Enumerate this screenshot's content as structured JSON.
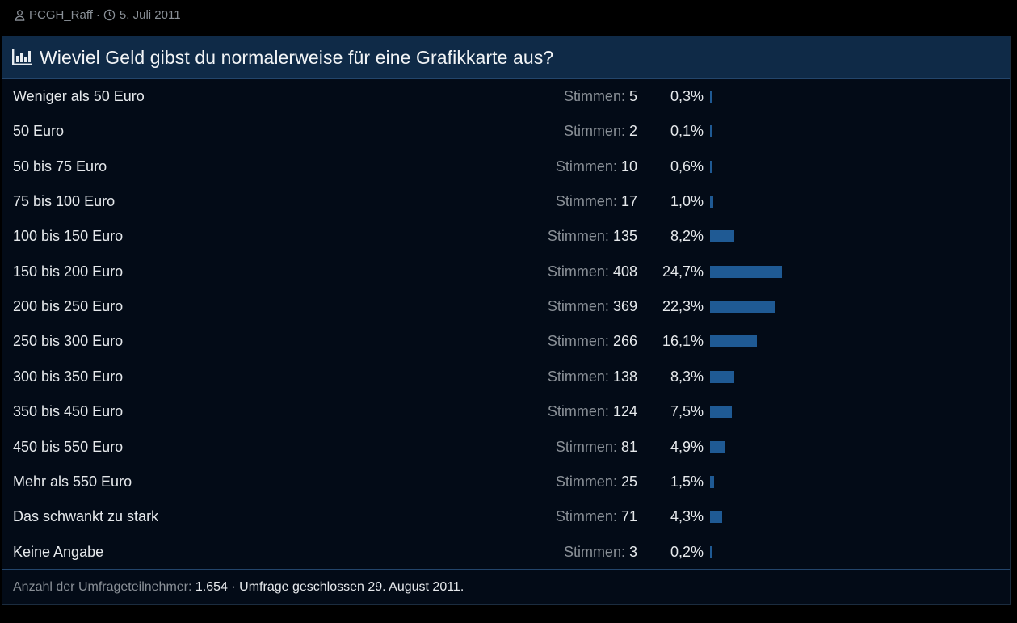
{
  "thread_meta": {
    "author": "PCGH_Raff",
    "separator": "·",
    "date": "5. Juli 2011",
    "icons": [
      "user-icon",
      "clock-icon"
    ]
  },
  "poll": {
    "title": "Wieviel Geld gibst du normalerweise für eine Grafikkarte aus?",
    "title_icon": "bar-chart-icon",
    "votes_label": "Stimmen:",
    "bar_color": "#1f5a94",
    "answers": [
      {
        "label": "Weniger als 50 Euro",
        "votes": "5",
        "percent": "0,3%",
        "fraction": 0.003
      },
      {
        "label": "50 Euro",
        "votes": "2",
        "percent": "0,1%",
        "fraction": 0.001
      },
      {
        "label": "50 bis 75 Euro",
        "votes": "10",
        "percent": "0,6%",
        "fraction": 0.006
      },
      {
        "label": "75 bis 100 Euro",
        "votes": "17",
        "percent": "1,0%",
        "fraction": 0.01
      },
      {
        "label": "100 bis 150 Euro",
        "votes": "135",
        "percent": "8,2%",
        "fraction": 0.082
      },
      {
        "label": "150 bis 200 Euro",
        "votes": "408",
        "percent": "24,7%",
        "fraction": 0.247
      },
      {
        "label": "200 bis 250 Euro",
        "votes": "369",
        "percent": "22,3%",
        "fraction": 0.223
      },
      {
        "label": "250 bis 300 Euro",
        "votes": "266",
        "percent": "16,1%",
        "fraction": 0.161
      },
      {
        "label": "300 bis 350 Euro",
        "votes": "138",
        "percent": "8,3%",
        "fraction": 0.083
      },
      {
        "label": "350 bis 450 Euro",
        "votes": "124",
        "percent": "7,5%",
        "fraction": 0.075
      },
      {
        "label": "450 bis 550 Euro",
        "votes": "81",
        "percent": "4,9%",
        "fraction": 0.049
      },
      {
        "label": "Mehr als 550 Euro",
        "votes": "25",
        "percent": "1,5%",
        "fraction": 0.015
      },
      {
        "label": "Das schwankt zu stark",
        "votes": "71",
        "percent": "4,3%",
        "fraction": 0.043
      },
      {
        "label": "Keine Angabe",
        "votes": "3",
        "percent": "0,2%",
        "fraction": 0.002
      }
    ],
    "footer": {
      "participants_label": "Anzahl der Umfrageteilnehmer:",
      "participants": "1.654",
      "separator": "·",
      "closed_text": "Umfrage geschlossen 29. August 2011."
    }
  }
}
